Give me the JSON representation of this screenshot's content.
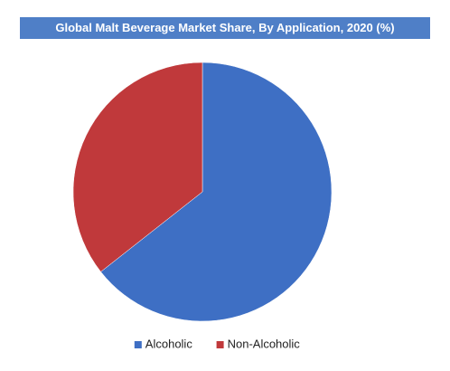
{
  "chart_data": {
    "type": "pie",
    "title": "Global Malt Beverage Market Share, By Application, 2020 (%)",
    "categories": [
      "Alcoholic",
      "Non-Alcoholic"
    ],
    "values": [
      64.4,
      35.6
    ],
    "colors": [
      "#3e6fc4",
      "#c0393b"
    ],
    "legend": "bottom"
  }
}
